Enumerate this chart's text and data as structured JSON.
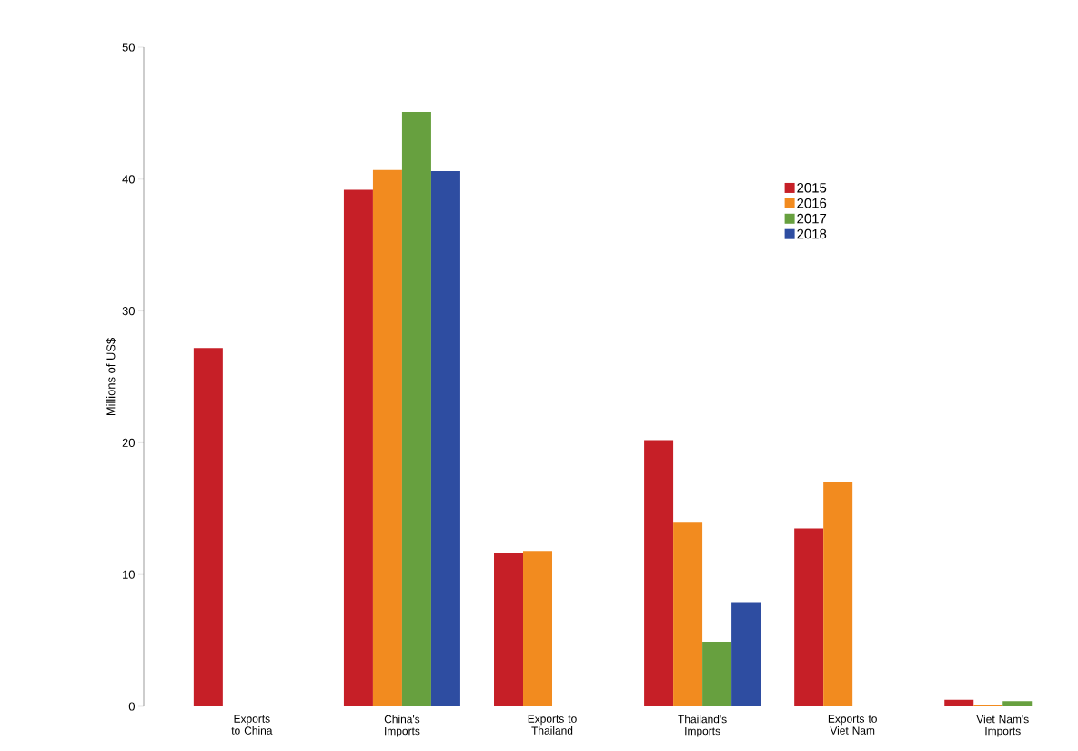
{
  "chart_data": {
    "type": "bar",
    "ylabel": "Millions of US$",
    "categories": [
      "Exports to China",
      "China's Imports",
      "Exports to Thailand",
      "Thailand's Imports",
      "Exports to Viet Nam",
      "Viet Nam's Imports"
    ],
    "series": [
      {
        "name": "2015",
        "color": "#c61f27",
        "values": [
          27.2,
          39.2,
          11.6,
          20.2,
          13.5,
          0.5
        ]
      },
      {
        "name": "2016",
        "color": "#f28b1f",
        "values": [
          null,
          40.7,
          11.8,
          14.0,
          17.0,
          0.1
        ]
      },
      {
        "name": "2017",
        "color": "#67a03f",
        "values": [
          null,
          45.1,
          null,
          4.9,
          null,
          0.4
        ]
      },
      {
        "name": "2018",
        "color": "#2e4da1",
        "values": [
          null,
          40.6,
          null,
          7.9,
          null,
          null
        ]
      }
    ],
    "ylim": [
      0,
      50
    ],
    "yticks": [
      0,
      10,
      20,
      30,
      40,
      50
    ],
    "grid": false,
    "legend": "top right"
  }
}
